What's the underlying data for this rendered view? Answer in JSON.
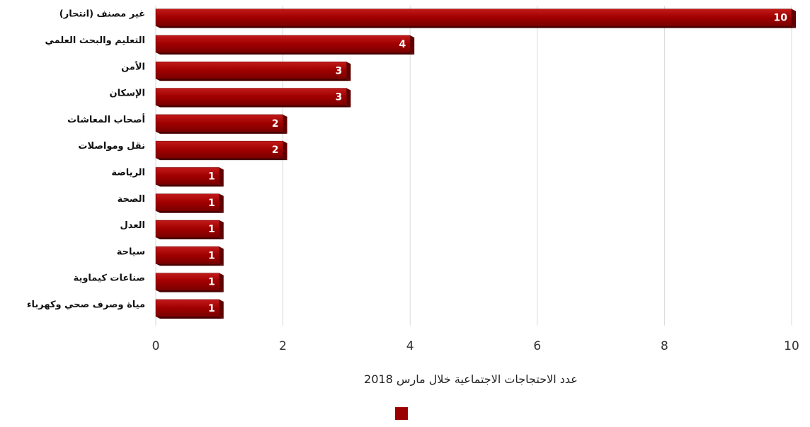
{
  "chart_data": {
    "type": "bar",
    "orientation": "horizontal",
    "categories": [
      "غير مصنف (انتحار)",
      "التعليم والبحث العلمي",
      "الأمن",
      "الإسكان",
      "أصحاب المعاشات",
      "نقل ومواصلات",
      "الرياضة",
      "الصحة",
      "العدل",
      "سياحة",
      "صناعات كيماوية",
      "مياة وصرف صحي وكهرباء"
    ],
    "series": [
      {
        "values": [
          10,
          4,
          3,
          3,
          2,
          2,
          1,
          1,
          1,
          1,
          1,
          1
        ],
        "color": "#9b0000"
      }
    ],
    "data_labels": [
      "10",
      "4",
      "3",
      "3",
      "2",
      "2",
      "1",
      "1",
      "1",
      "1",
      "1",
      "1"
    ],
    "xlabel": "عدد الاحتجاجات الاجتماعية خلال مارس 2018",
    "ylabel": "",
    "title": "",
    "xlim": [
      0,
      10
    ],
    "xticks": [
      0,
      2,
      4,
      6,
      8,
      10
    ],
    "xtick_labels": [
      "0",
      "2",
      "4",
      "6",
      "8",
      "10"
    ],
    "grid": "vertical",
    "legend": {
      "position": "bottom-center",
      "show_marker": true
    }
  }
}
